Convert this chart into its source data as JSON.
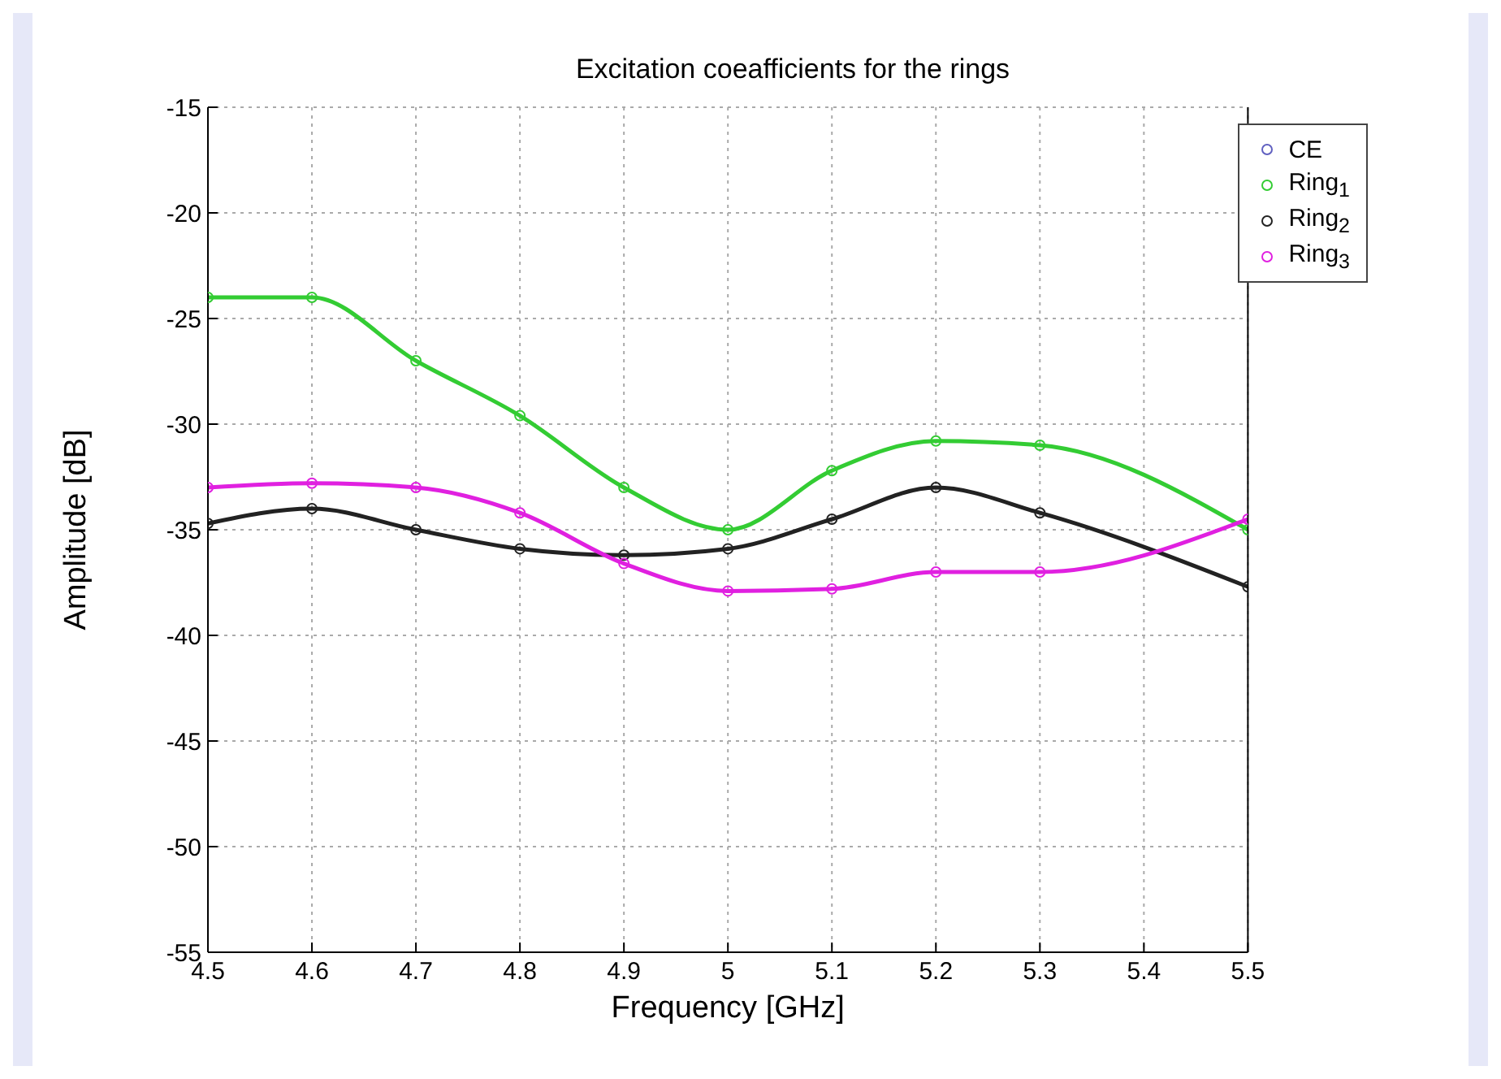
{
  "chart_data": {
    "type": "line",
    "title": "Excitation coeafficients for the rings",
    "xlabel": "Frequency [GHz]",
    "ylabel": "Amplitude  [dB]",
    "x": [
      4.5,
      4.6,
      4.7,
      4.8,
      4.9,
      5.0,
      5.1,
      5.2,
      5.3,
      5.5
    ],
    "series": [
      {
        "name": "CE",
        "color": "#6060c0",
        "values": [
          null,
          null,
          null,
          null,
          null,
          null,
          null,
          null,
          null,
          null
        ]
      },
      {
        "name": "Ring$_{1}$",
        "color": "#33cc33",
        "values": [
          -24,
          -24,
          -27,
          -29.6,
          -33,
          -35,
          -32.2,
          -30.8,
          -31,
          -35
        ]
      },
      {
        "name": "Ring$_{2}$",
        "color": "#222222",
        "values": [
          -34.7,
          -34,
          -35,
          -35.9,
          -36.2,
          -35.9,
          -34.5,
          -33,
          -34.2,
          -37.7
        ]
      },
      {
        "name": "Ring$_{3}$",
        "color": "#e020e0",
        "values": [
          -33,
          -32.8,
          -33,
          -34.2,
          -36.6,
          -37.9,
          -37.8,
          -37,
          -37,
          -34.5
        ]
      }
    ],
    "xlim": [
      4.5,
      5.5
    ],
    "xticks": [
      4.5,
      4.6,
      4.7,
      4.8,
      4.9,
      5,
      5.1,
      5.2,
      5.3,
      5.4,
      5.5
    ],
    "ylim": [
      -55,
      -15
    ],
    "yticks": [
      -55,
      -50,
      -45,
      -40,
      -35,
      -30,
      -25,
      -20,
      -15
    ],
    "grid": true,
    "legend": "top right",
    "marker": "circle",
    "line_style": "solid"
  }
}
